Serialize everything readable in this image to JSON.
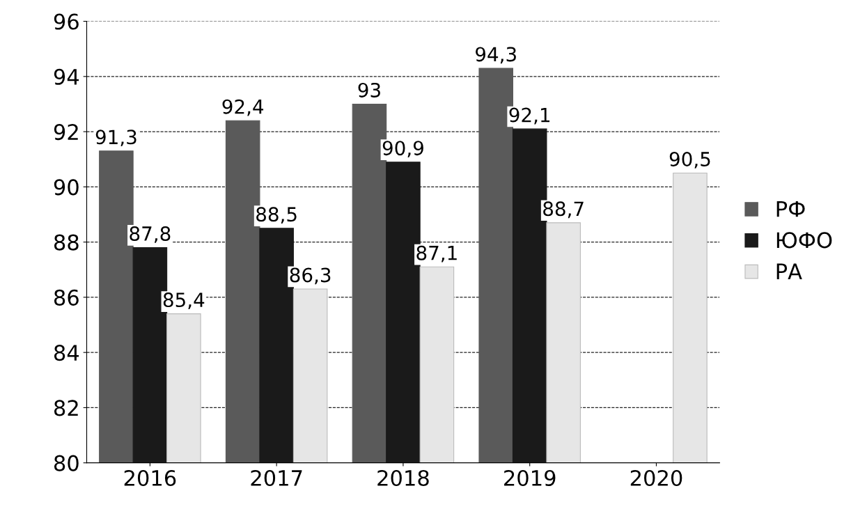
{
  "chart_data": {
    "type": "bar",
    "categories": [
      "2016",
      "2017",
      "2018",
      "2019",
      "2020"
    ],
    "series": [
      {
        "name": "РФ",
        "color": "#5a5a5a",
        "values": [
          91.3,
          92.4,
          93,
          94.3,
          null
        ],
        "value_labels": [
          "91,3",
          "92,4",
          "93",
          "94,3",
          null
        ]
      },
      {
        "name": "ЮФО",
        "color": "#1a1a1a",
        "values": [
          87.8,
          88.5,
          90.9,
          92.1,
          null
        ],
        "value_labels": [
          "87,8",
          "88,5",
          "90,9",
          "92,1",
          null
        ]
      },
      {
        "name": "РА",
        "color": "#e6e6e6",
        "values": [
          85.4,
          86.3,
          87.1,
          88.7,
          90.5
        ],
        "value_labels": [
          "85,4",
          "86,3",
          "87,1",
          "88,7",
          "90,5"
        ]
      }
    ],
    "ylim": [
      80,
      96
    ],
    "yticks": [
      80,
      82,
      84,
      86,
      88,
      90,
      92,
      94,
      96
    ],
    "grid": "y",
    "legend": "right"
  }
}
